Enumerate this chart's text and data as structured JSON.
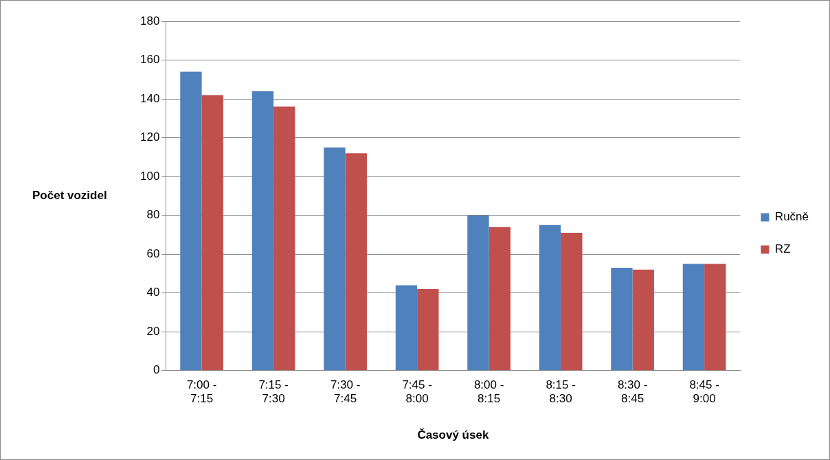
{
  "chart_data": {
    "type": "bar",
    "xlabel": "Časový úsek",
    "ylabel": "Počet vozidel",
    "categories": [
      "7:00 - 7:15",
      "7:15 - 7:30",
      "7:30 - 7:45",
      "7:45 - 8:00",
      "8:00 - 8:15",
      "8:15 - 8:30",
      "8:30 - 8:45",
      "8:45 - 9:00"
    ],
    "series": [
      {
        "name": "Ručně",
        "color": "#4f81bd",
        "values": [
          154,
          144,
          115,
          44,
          80,
          75,
          53,
          55
        ]
      },
      {
        "name": "RZ",
        "color": "#c0504d",
        "values": [
          142,
          136,
          112,
          42,
          74,
          71,
          52,
          55
        ]
      }
    ],
    "ylim": [
      0,
      180
    ],
    "yticks": [
      0,
      20,
      40,
      60,
      80,
      100,
      120,
      140,
      160,
      180
    ],
    "grid": "y",
    "legend": "right"
  }
}
